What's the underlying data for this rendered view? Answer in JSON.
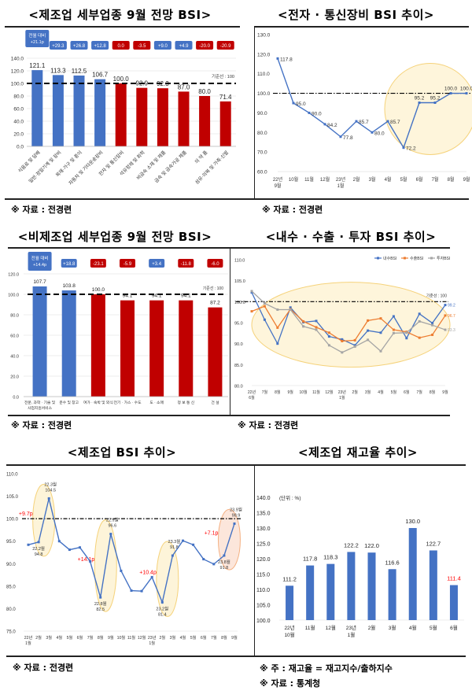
{
  "panels": {
    "p1": {
      "title": "<제조업 세부업종 9월 전망 BSI>",
      "source": "※ 자료 : 전경련"
    },
    "p2": {
      "title": "<전자 · 통신장비 BSI 추이>",
      "source": "※ 자료 : 전경련"
    },
    "p3": {
      "title": "<비제조업 세부업종 9월 전망 BSI>",
      "source": "※ 자료 : 전경련"
    },
    "p4": {
      "title": "<내수 · 수출 · 투자 BSI 추이>",
      "source": "※ 자료 : 전경련"
    },
    "p5": {
      "title": "<제조업 BSI 추이>",
      "source": "※ 자료 : 전경련"
    },
    "p6": {
      "title": "<제조업 재고율 추이>",
      "note": "※ 주 : 재고율 = 재고지수/출하지수",
      "source": "※ 자료 : 통계청"
    }
  },
  "chart_data": [
    {
      "id": "mfg-sector-bsi",
      "type": "bar",
      "title": "<제조업 세부업종 9월 전망 BSI>",
      "categories": [
        "식음료 및 담배",
        "일반·정밀기계 및 장비",
        "목재·가구 및 종이",
        "자동차 및 기타운송장비",
        "전자 및 통신장비",
        "석유정제 및 화학",
        "비금속 소재 및 제품",
        "금속 및 금속가공 제품",
        "의 약 품",
        "섬유·의복 및 가죽·신발"
      ],
      "values": [
        121.1,
        113.3,
        112.5,
        106.7,
        100.0,
        92.9,
        92.3,
        87.0,
        80.0,
        71.4
      ],
      "changes": [
        "전월 대비\n+21.1p",
        "+29.3",
        "+26.8",
        "+12.8",
        "0.0",
        "-3.5",
        "+9.0",
        "+4.9",
        "-20.0",
        "-20.9"
      ],
      "change_colors": [
        "#4472c4",
        "#4472c4",
        "#4472c4",
        "#4472c4",
        "#c00000",
        "#c00000",
        "#4472c4",
        "#4472c4",
        "#c00000",
        "#c00000"
      ],
      "bar_colors": [
        "#4472c4",
        "#4472c4",
        "#4472c4",
        "#4472c4",
        "#c00000",
        "#c00000",
        "#c00000",
        "#c00000",
        "#c00000",
        "#c00000"
      ],
      "yticks": [
        0.0,
        20.0,
        40.0,
        60.0,
        80.0,
        100.0,
        120.0,
        140.0
      ],
      "ylim": [
        0,
        140
      ],
      "baseline": 100,
      "baseline_label": "기준선 : 100"
    },
    {
      "id": "elec-bsi-trend",
      "type": "line",
      "title": "<전자 · 통신장비 BSI 추이>",
      "categories": [
        "22년\n9월",
        "10월",
        "11월",
        "12월",
        "23년\n1월",
        "2월",
        "3월",
        "4월",
        "5월",
        "6월",
        "7월",
        "8월",
        "9월"
      ],
      "values": [
        117.8,
        95.0,
        90.0,
        84.2,
        77.8,
        85.7,
        80.0,
        85.7,
        72.2,
        95.2,
        95.2,
        100.0,
        100.0
      ],
      "yticks": [
        60.0,
        70.0,
        80.0,
        90.0,
        100.0,
        110.0,
        120.0,
        130.0
      ],
      "ylim": [
        60,
        130
      ],
      "baseline": 100
    },
    {
      "id": "nonmfg-sector-bsi",
      "type": "bar",
      "title": "<비제조업 세부업종 9월 전망 BSI>",
      "categories": [
        "전문, 과학 · 기술 및\n사업지원서비스",
        "운수 및 창고",
        "여가 · 숙박 및 외식",
        "전기 · 가스 · 수도",
        "도 · 소매",
        "정 보 통 신",
        "건 설"
      ],
      "values": [
        107.7,
        103.8,
        100.0,
        94.1,
        94.1,
        94.1,
        87.2
      ],
      "changes": [
        "전월 대비\n+14.4p",
        "+18.8",
        "-23.1",
        "-5.9",
        "+3.4",
        "-11.8",
        "-6.0"
      ],
      "change_colors": [
        "#4472c4",
        "#4472c4",
        "#c00000",
        "#c00000",
        "#4472c4",
        "#c00000",
        "#c00000"
      ],
      "bar_colors": [
        "#4472c4",
        "#4472c4",
        "#c00000",
        "#c00000",
        "#c00000",
        "#c00000",
        "#c00000"
      ],
      "yticks": [
        0.0,
        20.0,
        40.0,
        60.0,
        80.0,
        100.0,
        120.0
      ],
      "ylim": [
        0,
        120
      ],
      "baseline": 100,
      "baseline_label": "기준선 : 100"
    },
    {
      "id": "domestic-export-invest-bsi",
      "type": "line",
      "title": "<내수 · 수출 · 투자 BSI 추이>",
      "categories": [
        "22년\n6월",
        "7월",
        "8월",
        "9월",
        "10월",
        "11월",
        "12월",
        "23년\n1월",
        "2월",
        "3월",
        "4월",
        "5월",
        "6월",
        "7월",
        "8월",
        "9월"
      ],
      "series": [
        {
          "name": "내수BSI",
          "color": "#4472c4",
          "values": [
            102.2,
            95.7,
            90.0,
            98.6,
            95.1,
            95.4,
            91.7,
            91.0,
            89.6,
            93.1,
            92.6,
            96.5,
            91.3,
            97.1,
            94.9,
            99.2
          ]
        },
        {
          "name": "수출BSI",
          "color": "#ed7d31",
          "values": [
            97.7,
            98.9,
            93.8,
            98.2,
            95.3,
            93.9,
            92.6,
            90.6,
            90.8,
            95.5,
            96.0,
            93.3,
            92.8,
            91.4,
            92.1,
            96.7
          ]
        },
        {
          "name": "투자BSI",
          "color": "#a5a5a5",
          "values": [
            102.5,
            99.6,
            98.1,
            98.1,
            94.1,
            93.3,
            89.6,
            87.9,
            89.3,
            90.9,
            88.2,
            92.5,
            92.6,
            95.3,
            94.4,
            93.3
          ]
        }
      ],
      "end_labels": [
        "99.2",
        "96.7",
        "93.3"
      ],
      "yticks": [
        80.0,
        85.0,
        90.0,
        95.0,
        100.0,
        105.0,
        110.0
      ],
      "ylim": [
        80,
        110
      ],
      "baseline": 100,
      "baseline_label": "기준선 : 100",
      "legend": "top-right"
    },
    {
      "id": "mfg-bsi-trend",
      "type": "line",
      "title": "<제조업 BSI 추이>",
      "categories": [
        "22년\n1월",
        "2월",
        "3월",
        "4월",
        "5월",
        "6월",
        "7월",
        "8월",
        "9월",
        "10월",
        "11월",
        "12월",
        "23년\n1월",
        "2월",
        "3월",
        "4월",
        "5월",
        "6월",
        "7월",
        "8월",
        "9월"
      ],
      "values": [
        94.2,
        94.8,
        104.5,
        95.0,
        93.1,
        93.6,
        90.5,
        82.5,
        96.6,
        88.4,
        84.0,
        83.9,
        87.0,
        81.4,
        91.8,
        95.1,
        94.2,
        91.0,
        89.9,
        91.8,
        98.9
      ],
      "annotations": [
        {
          "index": 1,
          "label": "22.2월\n94.8",
          "pos": "below"
        },
        {
          "index": 2,
          "label": "22.3월\n104.5",
          "pos": "above"
        },
        {
          "index": 7,
          "label": "22.8월\n82.5",
          "pos": "below"
        },
        {
          "index": 8,
          "label": "22.9월\n96.6",
          "pos": "above"
        },
        {
          "index": 13,
          "label": "23.2월\n81.4",
          "pos": "below"
        },
        {
          "index": 14,
          "label": "23.3월\n91.8",
          "pos": "above"
        },
        {
          "index": 19,
          "label": "23.8월\n91.8",
          "pos": "below"
        },
        {
          "index": 20,
          "label": "23.9월\n98.9",
          "pos": "above"
        }
      ],
      "changes": [
        {
          "from": 1,
          "to": 2,
          "label": "+9.7p"
        },
        {
          "from": 7,
          "to": 8,
          "label": "+14.1p"
        },
        {
          "from": 13,
          "to": 14,
          "label": "+10.4p"
        },
        {
          "from": 19,
          "to": 20,
          "label": "+7.1p"
        }
      ],
      "yticks": [
        75.0,
        80.0,
        85.0,
        90.0,
        95.0,
        100.0,
        105.0,
        110.0
      ],
      "ylim": [
        75,
        110
      ],
      "baseline": 100
    },
    {
      "id": "mfg-inventory-ratio",
      "type": "bar",
      "title": "<제조업 재고율 추이>",
      "unit_label": "(단위 : %)",
      "categories": [
        "22년\n10월",
        "11월",
        "12월",
        "23년\n1월",
        "2월",
        "3월",
        "4월",
        "5월",
        "6월"
      ],
      "values": [
        111.2,
        117.8,
        118.3,
        122.2,
        122.0,
        116.6,
        130.0,
        122.7,
        111.4
      ],
      "highlight_last_color": "#ff0000",
      "yticks": [
        100.0,
        105.0,
        110.0,
        115.0,
        120.0,
        125.0,
        130.0,
        135.0,
        140.0
      ],
      "ylim": [
        100,
        140
      ]
    }
  ]
}
